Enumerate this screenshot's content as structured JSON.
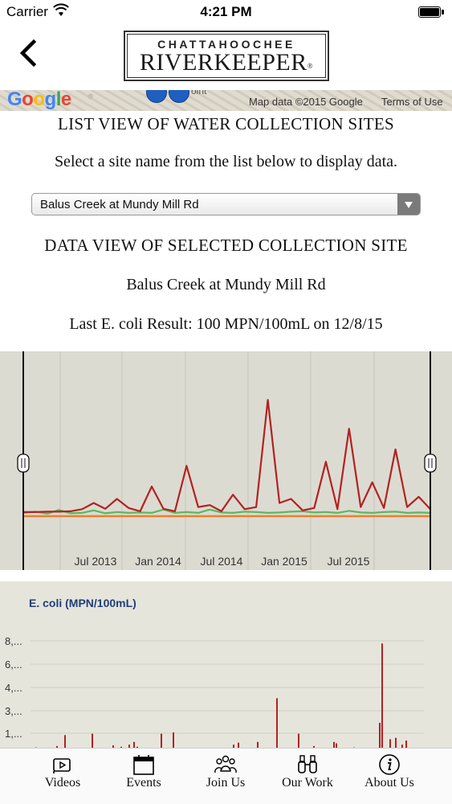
{
  "status_bar": {
    "carrier": "Carrier",
    "time": "4:21 PM"
  },
  "header": {
    "logo_line1": "CHATTAHOOCHEE",
    "logo_line2": "RIVERKEEPER",
    "logo_mark": "®"
  },
  "map": {
    "google_logo": "Google",
    "pin_label": "oint",
    "attribution": "Map data ©2015 Google",
    "terms": "Terms of Use"
  },
  "list_title": "LIST VIEW OF WATER COLLECTION SITES",
  "list_instructions": "Select a site name from the list below to display data.",
  "site_select": {
    "value": "Balus Creek at Mundy Mill Rd"
  },
  "data_title": "DATA VIEW OF SELECTED COLLECTION SITE",
  "site_name": "Balus Creek at Mundy Mill Rd",
  "last_result": "Last E. coli Result: 100 MPN/100mL on 12/8/15",
  "colors": {
    "red_series": "#b22222",
    "green_series": "#5cb85c",
    "orange_baseline": "#e8822a",
    "chart_bg": "#dcdbd2",
    "axis_label": "#1f3f7a"
  },
  "tabs": [
    {
      "label": "Videos",
      "icon": "video-icon"
    },
    {
      "label": "Events",
      "icon": "calendar-icon"
    },
    {
      "label": "Join Us",
      "icon": "people-icon"
    },
    {
      "label": "Our Work",
      "icon": "binoculars-icon"
    },
    {
      "label": "About Us",
      "icon": "info-icon"
    }
  ],
  "chart_data": [
    {
      "type": "line",
      "title": "",
      "x_tick_labels": [
        "Jul 2013",
        "Jan 2014",
        "Jul 2014",
        "Jan 2015",
        "Jul 2015"
      ],
      "series": [
        {
          "color": "#b22222",
          "values": [
            80,
            80,
            90,
            90,
            100,
            150,
            300,
            160,
            400,
            180,
            100,
            700,
            160,
            100,
            1200,
            200,
            250,
            100,
            500,
            150,
            200,
            2800,
            300,
            400,
            120,
            180,
            1300,
            150,
            2100,
            200,
            800,
            180,
            1600,
            200,
            450,
            150
          ]
        },
        {
          "color": "#5cb85c",
          "values": [
            60,
            90,
            40,
            130,
            50,
            60,
            120,
            50,
            80,
            60,
            70,
            60,
            140,
            60,
            80,
            60,
            140,
            70,
            60,
            90,
            80,
            60,
            70,
            90,
            100,
            70,
            80,
            60,
            110,
            70,
            60,
            80,
            90,
            60,
            70,
            60
          ]
        }
      ]
    },
    {
      "type": "bar",
      "ylabel": "E. coli (MPN/100mL)",
      "ytick_labels": [
        "8,...",
        "6,...",
        "4,...",
        "3,...",
        "1,..."
      ],
      "values": [
        200,
        150,
        300,
        1100,
        1200,
        350,
        250,
        400,
        600,
        250,
        1200,
        1300,
        100,
        400,
        550,
        150,
        600,
        3800,
        1200,
        300,
        600,
        500,
        200,
        2000,
        7800,
        800,
        900,
        400,
        700
      ]
    }
  ]
}
